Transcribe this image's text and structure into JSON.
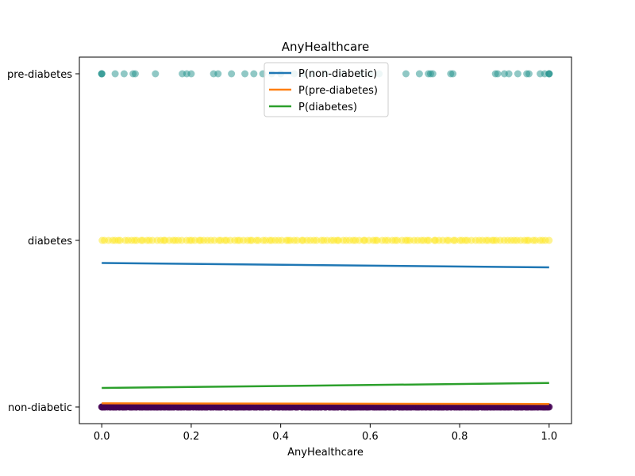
{
  "chart_data": {
    "type": "scatter",
    "title": "AnyHealthcare",
    "xlabel": "AnyHealthcare",
    "ylabel": "",
    "xlim": [
      -0.05,
      1.05
    ],
    "ylim": [
      -0.05,
      1.05
    ],
    "x_ticks": [
      0.0,
      0.2,
      0.4,
      0.6,
      0.8,
      1.0
    ],
    "x_tick_labels": [
      "0.0",
      "0.2",
      "0.4",
      "0.6",
      "0.8",
      "1.0"
    ],
    "y_ticks": [
      0.0,
      0.5,
      1.0
    ],
    "y_tick_labels": [
      "non-diabetic",
      "diabetes",
      "pre-diabetes"
    ],
    "scatter_series": [
      {
        "class": "pre-diabetes",
        "y": 1.0,
        "color": "#21918c",
        "x": [
          0.0,
          0.0,
          0.0,
          0.03,
          0.05,
          0.07,
          0.075,
          0.12,
          0.18,
          0.19,
          0.2,
          0.25,
          0.26,
          0.29,
          0.32,
          0.34,
          0.36,
          0.38,
          0.4,
          0.43,
          0.45,
          0.47,
          0.5,
          0.54,
          0.58,
          0.6,
          0.62,
          0.68,
          0.71,
          0.73,
          0.735,
          0.74,
          0.78,
          0.785,
          0.88,
          0.885,
          0.9,
          0.91,
          0.93,
          0.95,
          0.955,
          0.98,
          0.99,
          1.0,
          1.0,
          1.0
        ]
      },
      {
        "class": "diabetes",
        "y": 0.5,
        "color": "#fde725",
        "x_range": [
          0.0,
          1.0
        ],
        "count": 140
      },
      {
        "class": "non-diabetic",
        "y": 0.0,
        "color": "#440154",
        "x_range": [
          0.0,
          1.0
        ],
        "count": 400
      }
    ],
    "line_series": [
      {
        "name": "P(non-diabetic)",
        "color": "#1f77b4",
        "x": [
          0.0,
          1.0
        ],
        "y": [
          0.432,
          0.419
        ]
      },
      {
        "name": "P(pre-diabetes)",
        "color": "#ff7f0e",
        "x": [
          0.0,
          1.0
        ],
        "y": [
          0.011,
          0.009
        ]
      },
      {
        "name": "P(diabetes)",
        "color": "#2ca02c",
        "x": [
          0.0,
          1.0
        ],
        "y": [
          0.057,
          0.072
        ]
      }
    ],
    "legend_position": "top-center",
    "grid": false
  }
}
